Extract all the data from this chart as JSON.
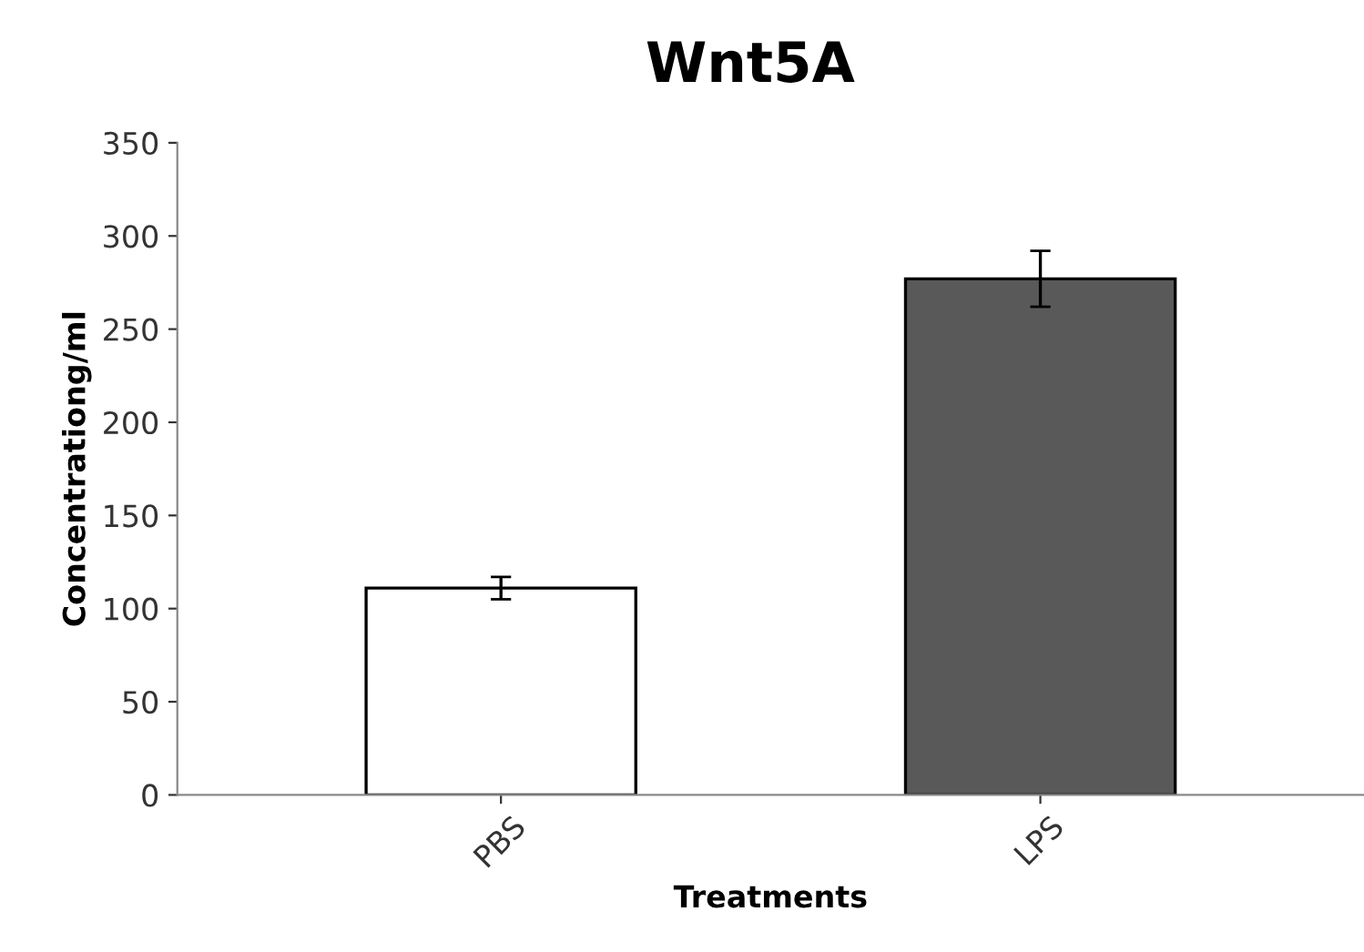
{
  "chart_data": {
    "type": "bar",
    "title": "Wnt5A",
    "xlabel": "Treatments",
    "ylabel": "Concentrationg/ml",
    "categories": [
      "PBS",
      "LPS"
    ],
    "values": [
      111,
      277
    ],
    "errors": [
      6,
      15
    ],
    "colors": [
      "#ffffff",
      "#595959"
    ],
    "ylim": [
      0,
      350
    ],
    "yticks": [
      0,
      50,
      100,
      150,
      200,
      250,
      300,
      350
    ],
    "grid": false,
    "legend": false
  }
}
